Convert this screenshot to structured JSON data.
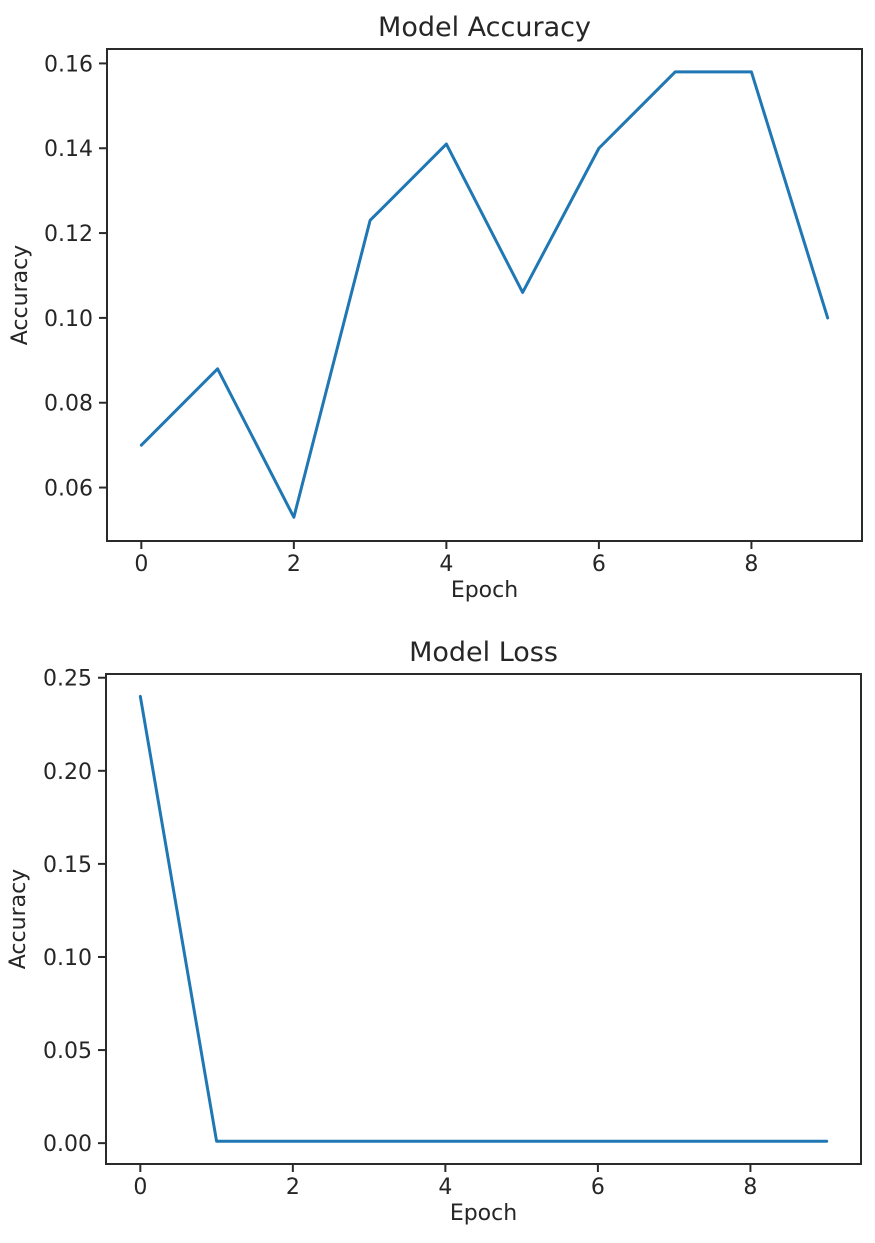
{
  "figure": {
    "background": "#ffffff"
  },
  "colors": {
    "line": "#1f77b4",
    "spine": "#2a2a2a",
    "text": "#262626",
    "background": "#ffffff"
  },
  "chart_data": [
    {
      "type": "line",
      "title": "Model Accuracy",
      "xlabel": "Epoch",
      "ylabel": "Accuracy",
      "x": [
        0,
        1,
        2,
        3,
        4,
        5,
        6,
        7,
        8,
        9
      ],
      "y": [
        0.07,
        0.088,
        0.053,
        0.123,
        0.141,
        0.106,
        0.14,
        0.158,
        0.158,
        0.1
      ],
      "xlim": [
        -0.45,
        9.45
      ],
      "ylim": [
        0.0474,
        0.1634
      ],
      "xticks": [
        0,
        2,
        4,
        6,
        8
      ],
      "yticks": [
        0.16,
        0.14,
        0.12,
        0.1,
        0.08,
        0.06
      ],
      "ytick_decimals": 2,
      "line_color": "#1f77b4",
      "grid": false,
      "legend": "none"
    },
    {
      "type": "line",
      "title": "Model Loss",
      "xlabel": "Epoch",
      "ylabel": "Accuracy",
      "x": [
        0,
        1,
        2,
        3,
        4,
        5,
        6,
        7,
        8,
        9
      ],
      "y": [
        0.24,
        0.001,
        0.001,
        0.001,
        0.001,
        0.001,
        0.001,
        0.001,
        0.001,
        0.001
      ],
      "xlim": [
        -0.45,
        9.45
      ],
      "ylim": [
        -0.0112,
        0.252
      ],
      "xticks": [
        0,
        2,
        4,
        6,
        8
      ],
      "yticks": [
        0.25,
        0.2,
        0.15,
        0.1,
        0.05,
        0.0
      ],
      "ytick_decimals": 2,
      "line_color": "#1f77b4",
      "grid": false,
      "legend": "none"
    }
  ]
}
